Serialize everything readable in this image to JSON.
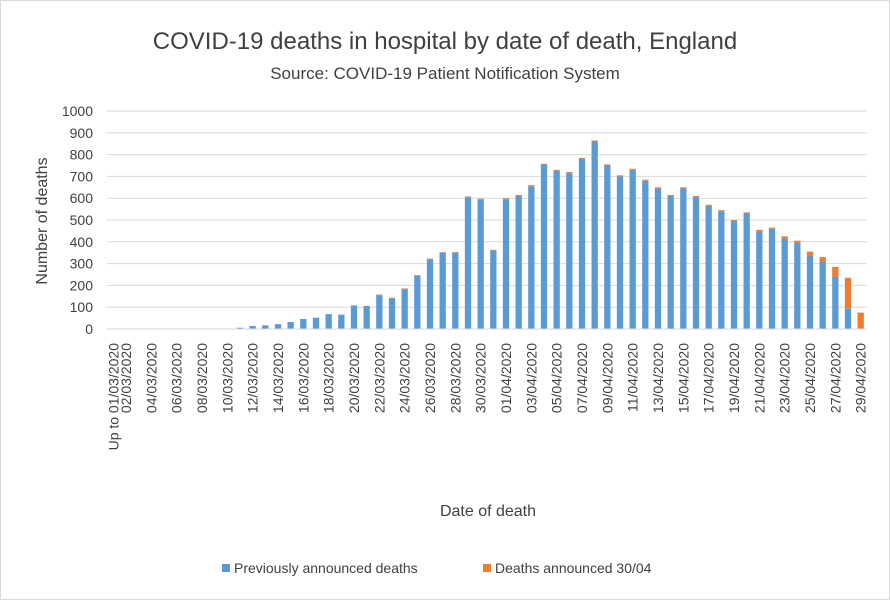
{
  "chart_data": {
    "type": "bar",
    "stacked": true,
    "title": "COVID-19 deaths in hospital by date of death, England",
    "subtitle": "Source: COVID-19 Patient Notification System",
    "xlabel": "Date of death",
    "ylabel": "Number of deaths",
    "ylim": [
      0,
      1000
    ],
    "yticks": [
      0,
      100,
      200,
      300,
      400,
      500,
      600,
      700,
      800,
      900,
      1000
    ],
    "grid": true,
    "legend_position": "bottom",
    "categories": [
      "Up to 01/03/2020",
      "02/03/2020",
      "03/03/2020",
      "04/03/2020",
      "05/03/2020",
      "06/03/2020",
      "07/03/2020",
      "08/03/2020",
      "09/03/2020",
      "10/03/2020",
      "11/03/2020",
      "12/03/2020",
      "13/03/2020",
      "14/03/2020",
      "15/03/2020",
      "16/03/2020",
      "17/03/2020",
      "18/03/2020",
      "19/03/2020",
      "20/03/2020",
      "21/03/2020",
      "22/03/2020",
      "23/03/2020",
      "24/03/2020",
      "25/03/2020",
      "26/03/2020",
      "27/03/2020",
      "28/03/2020",
      "29/03/2020",
      "30/03/2020",
      "31/03/2020",
      "01/04/2020",
      "02/04/2020",
      "03/04/2020",
      "04/04/2020",
      "05/04/2020",
      "06/04/2020",
      "07/04/2020",
      "08/04/2020",
      "09/04/2020",
      "10/04/2020",
      "11/04/2020",
      "12/04/2020",
      "13/04/2020",
      "14/04/2020",
      "15/04/2020",
      "16/04/2020",
      "17/04/2020",
      "18/04/2020",
      "19/04/2020",
      "20/04/2020",
      "21/04/2020",
      "22/04/2020",
      "23/04/2020",
      "24/04/2020",
      "25/04/2020",
      "26/04/2020",
      "27/04/2020",
      "28/04/2020",
      "29/04/2020"
    ],
    "tick_labels_shown": [
      "Up to  01/03/2020",
      "02/03/2020",
      "04/03/2020",
      "06/03/2020",
      "08/03/2020",
      "10/03/2020",
      "12/03/2020",
      "14/03/2020",
      "16/03/2020",
      "18/03/2020",
      "20/03/2020",
      "22/03/2020",
      "24/03/2020",
      "26/03/2020",
      "28/03/2020",
      "30/03/2020",
      "01/04/2020",
      "03/04/2020",
      "05/04/2020",
      "07/04/2020",
      "09/04/2020",
      "11/04/2020",
      "13/04/2020",
      "15/04/2020",
      "17/04/2020",
      "19/04/2020",
      "21/04/2020",
      "23/04/2020",
      "25/04/2020",
      "27/04/2020",
      "29/04/2020"
    ],
    "series": [
      {
        "name": "Previously announced deaths",
        "color": "#5b9bd5",
        "values": [
          0,
          0,
          0,
          0,
          0,
          0,
          0,
          0,
          0,
          2,
          6,
          14,
          17,
          22,
          32,
          46,
          52,
          68,
          66,
          108,
          106,
          155,
          140,
          183,
          245,
          320,
          350,
          350,
          605,
          595,
          360,
          595,
          610,
          655,
          755,
          725,
          715,
          780,
          860,
          750,
          700,
          730,
          680,
          645,
          610,
          645,
          605,
          565,
          540,
          495,
          530,
          445,
          460,
          415,
          395,
          335,
          310,
          240,
          95,
          0
        ]
      },
      {
        "name": "Deaths announced 30/04",
        "color": "#ed7d31",
        "values": [
          0,
          0,
          0,
          0,
          0,
          0,
          0,
          0,
          0,
          0,
          0,
          0,
          0,
          0,
          0,
          0,
          0,
          0,
          0,
          0,
          0,
          3,
          3,
          3,
          2,
          3,
          3,
          3,
          3,
          3,
          3,
          5,
          5,
          5,
          3,
          5,
          5,
          5,
          5,
          5,
          5,
          5,
          5,
          5,
          5,
          5,
          5,
          5,
          5,
          5,
          5,
          10,
          5,
          10,
          10,
          20,
          20,
          45,
          140,
          75
        ]
      }
    ]
  }
}
